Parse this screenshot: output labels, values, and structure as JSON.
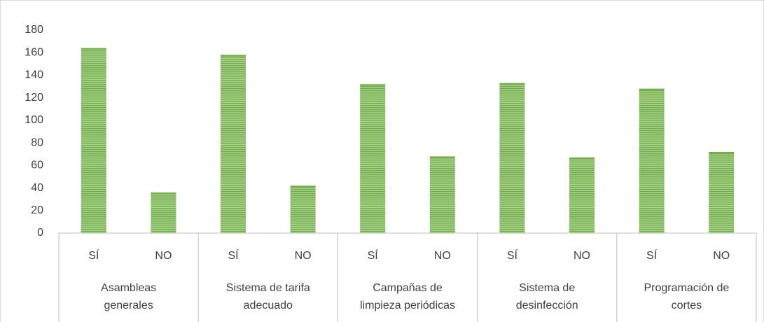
{
  "chart_data": {
    "type": "bar",
    "categories": [
      "SÍ",
      "NO",
      "SÍ",
      "NO",
      "SÍ",
      "NO",
      "SÍ",
      "NO",
      "SÍ",
      "NO"
    ],
    "groups": [
      [
        "Asambleas",
        "generales"
      ],
      [
        "Sistema de tarifa",
        "adecuado"
      ],
      [
        "Campañas de",
        "limpieza periódicas"
      ],
      [
        "Sistema de",
        "desinfección"
      ],
      [
        "Programación de",
        "cortes"
      ]
    ],
    "values": [
      164,
      36,
      158,
      42,
      132,
      68,
      133,
      67,
      128,
      72
    ],
    "color": "#70ad47",
    "ylim": [
      0,
      180
    ],
    "yticks": [
      0,
      20,
      40,
      60,
      80,
      100,
      120,
      140,
      160,
      180
    ],
    "grid": false
  }
}
